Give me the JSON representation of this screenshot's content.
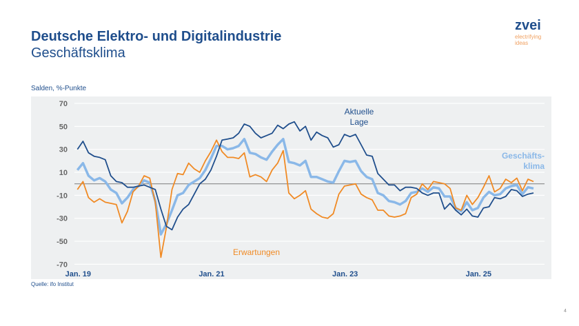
{
  "header": {
    "title": "Deutsche Elektro- und Digitalindustrie",
    "subtitle": "Geschäftsklima"
  },
  "logo": {
    "wordmark": "zvei",
    "tagline_1": "electrifying",
    "tagline_2": "ideas"
  },
  "source": "Quelle: ifo Institut",
  "page_number": "4",
  "chart_data": {
    "type": "line",
    "title": "",
    "xlabel": "",
    "ylabel": "Salden, %-Punkte",
    "ylim": [
      -70,
      70
    ],
    "yticks": [
      "70",
      "50",
      "30",
      "10",
      "-10",
      "-30",
      "-50",
      "-70"
    ],
    "xticks": [
      {
        "label": "Jan. 19",
        "month_index": 0
      },
      {
        "label": "Jan. 21",
        "month_index": 24
      },
      {
        "label": "Jan. 23",
        "month_index": 48
      },
      {
        "label": "Jan. 25",
        "month_index": 72
      }
    ],
    "x_start": "2019-01",
    "x_end": "2025-11",
    "frequency": "monthly",
    "grid": true,
    "zero_line": true,
    "background": "#eef0f1",
    "series": [
      {
        "name": "Aktuelle Lage",
        "label_lines": [
          "Aktuelle",
          "Lage"
        ],
        "color": "#1f4e8c",
        "values": [
          30,
          37,
          27,
          24,
          23,
          21,
          7,
          2,
          1,
          -3,
          -3,
          -2,
          -1,
          -3,
          -5,
          -22,
          -37,
          -40,
          -29,
          -22,
          -18,
          -9,
          0,
          4,
          12,
          24,
          38,
          39,
          40,
          44,
          52,
          50,
          44,
          40,
          42,
          44,
          51,
          48,
          52,
          54,
          46,
          50,
          38,
          45,
          42,
          40,
          32,
          34,
          43,
          41,
          43,
          34,
          25,
          24,
          9,
          4,
          -1,
          -1,
          -6,
          -3,
          -3,
          -4,
          -8,
          -10,
          -8,
          -8,
          -22,
          -17,
          -23,
          -27,
          -22,
          -28,
          -29,
          -21,
          -20,
          -12,
          -13,
          -11,
          -5,
          -6,
          -11,
          -9,
          -8
        ]
      },
      {
        "name": "Erwartungen",
        "label_lines": [
          "Erwartungen"
        ],
        "color": "#f08a24",
        "values": [
          -5,
          2,
          -12,
          -16,
          -13,
          -16,
          -17,
          -18,
          -34,
          -24,
          -7,
          -2,
          7,
          5,
          -16,
          -64,
          -38,
          -5,
          9,
          8,
          18,
          13,
          10,
          20,
          28,
          38,
          28,
          23,
          23,
          22,
          27,
          6,
          8,
          6,
          2,
          12,
          18,
          29,
          -8,
          -13,
          -10,
          -6,
          -22,
          -26,
          -29,
          -30,
          -26,
          -9,
          -2,
          -1,
          0,
          -9,
          -12,
          -14,
          -23,
          -23,
          -28,
          -29,
          -28,
          -26,
          -12,
          -9,
          0,
          -5,
          2,
          1,
          0,
          -4,
          -21,
          -23,
          -10,
          -18,
          -12,
          -3,
          7,
          -7,
          -4,
          4,
          1,
          5,
          -6,
          4,
          2
        ]
      },
      {
        "name": "Geschäftsklima",
        "label_lines": [
          "Geschäfts-",
          "klima"
        ],
        "color": "#8ab8e8",
        "values": [
          12,
          18,
          7,
          3,
          5,
          2,
          -5,
          -8,
          -17,
          -12,
          -5,
          -2,
          3,
          1,
          -15,
          -44,
          -35,
          -23,
          -10,
          -8,
          -1,
          2,
          5,
          12,
          22,
          33,
          33,
          30,
          31,
          33,
          39,
          27,
          26,
          23,
          21,
          28,
          34,
          39,
          19,
          18,
          16,
          20,
          6,
          6,
          4,
          2,
          1,
          11,
          20,
          19,
          20,
          11,
          6,
          4,
          -8,
          -10,
          -15,
          -16,
          -18,
          -15,
          -8,
          -7,
          -4,
          -7,
          -3,
          -4,
          -11,
          -11,
          -21,
          -24,
          -16,
          -23,
          -21,
          -12,
          -7,
          -10,
          -9,
          -4,
          -2,
          -1,
          -9,
          -3,
          -4
        ]
      }
    ]
  }
}
